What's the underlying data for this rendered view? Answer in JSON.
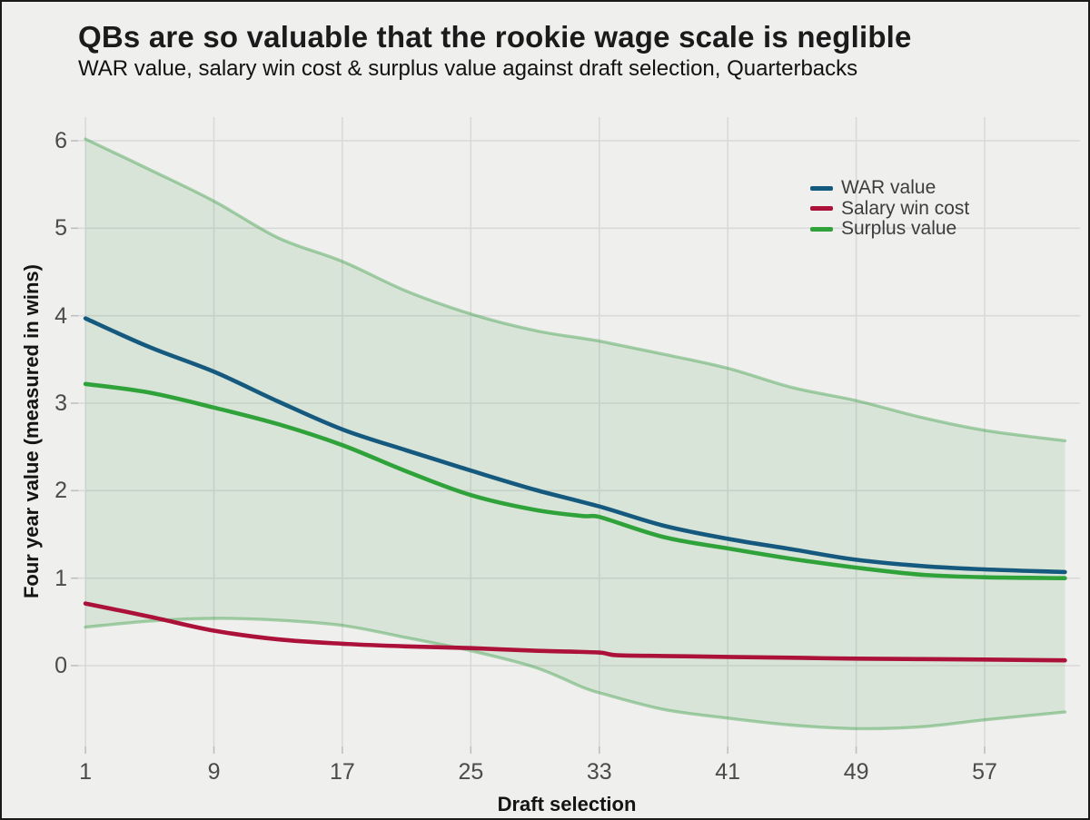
{
  "colors": {
    "background": "#efefee",
    "frame_border": "#1a1a1a",
    "gridline": "#d9d9d9",
    "tick_mark": "#bfbfbf",
    "title_text": "#1b1b1b",
    "axis_text": "#4b4b4b",
    "legend_text": "#3d3d3d"
  },
  "chart_data": {
    "type": "line",
    "title": "QBs are so valuable that the rookie wage scale is neglible",
    "subtitle": "WAR value, salary win cost & surplus value against draft selection, Quarterbacks",
    "xlabel": "Draft selection",
    "ylabel": "Four year value (measured in wins)",
    "x_ticks": [
      1,
      9,
      17,
      25,
      33,
      41,
      49,
      57
    ],
    "y_ticks": [
      0,
      1,
      2,
      3,
      4,
      5,
      6
    ],
    "xlim": [
      0.55,
      62.9
    ],
    "ylim": [
      -0.92,
      6.27
    ],
    "grid": true,
    "legend_position": "upper-right-inside",
    "series": [
      {
        "name": "WAR value",
        "color": "#16597f",
        "x": [
          1,
          5,
          9,
          13,
          17,
          21,
          25,
          29,
          33,
          37,
          41,
          45,
          49,
          53,
          57,
          62
        ],
        "y": [
          3.97,
          3.64,
          3.36,
          3.02,
          2.7,
          2.46,
          2.23,
          2.01,
          1.82,
          1.6,
          1.45,
          1.33,
          1.21,
          1.14,
          1.1,
          1.07
        ]
      },
      {
        "name": "Salary win cost",
        "color": "#ab1139",
        "x": [
          1,
          5,
          9,
          13,
          17,
          21,
          25,
          29,
          33,
          34,
          37,
          41,
          45,
          49,
          53,
          57,
          62
        ],
        "y": [
          0.71,
          0.56,
          0.4,
          0.3,
          0.25,
          0.22,
          0.2,
          0.17,
          0.15,
          0.12,
          0.11,
          0.1,
          0.09,
          0.08,
          0.075,
          0.07,
          0.06
        ]
      },
      {
        "name": "Surplus value",
        "color": "#2fa23a",
        "x": [
          1,
          5,
          9,
          13,
          17,
          21,
          25,
          29,
          32,
          33,
          37,
          41,
          45,
          49,
          53,
          57,
          62
        ],
        "y": [
          3.22,
          3.12,
          2.95,
          2.76,
          2.52,
          2.22,
          1.95,
          1.78,
          1.71,
          1.7,
          1.47,
          1.34,
          1.22,
          1.12,
          1.04,
          1.01,
          1.0
        ]
      }
    ],
    "band": {
      "fill_color": "#3a9e42",
      "fill_opacity": 0.13,
      "edge_color": "#3a9e42",
      "edge_opacity": 0.42,
      "x": [
        1,
        5,
        9,
        13,
        17,
        21,
        25,
        29,
        32,
        33,
        37,
        41,
        45,
        49,
        53,
        57,
        62
      ],
      "upper": [
        6.02,
        5.67,
        5.31,
        4.89,
        4.62,
        4.28,
        4.02,
        3.83,
        3.74,
        3.71,
        3.56,
        3.4,
        3.18,
        3.03,
        2.84,
        2.69,
        2.57
      ],
      "lower": [
        0.44,
        0.51,
        0.54,
        0.52,
        0.46,
        0.32,
        0.17,
        -0.02,
        -0.25,
        -0.31,
        -0.5,
        -0.6,
        -0.68,
        -0.72,
        -0.7,
        -0.62,
        -0.53
      ]
    }
  }
}
